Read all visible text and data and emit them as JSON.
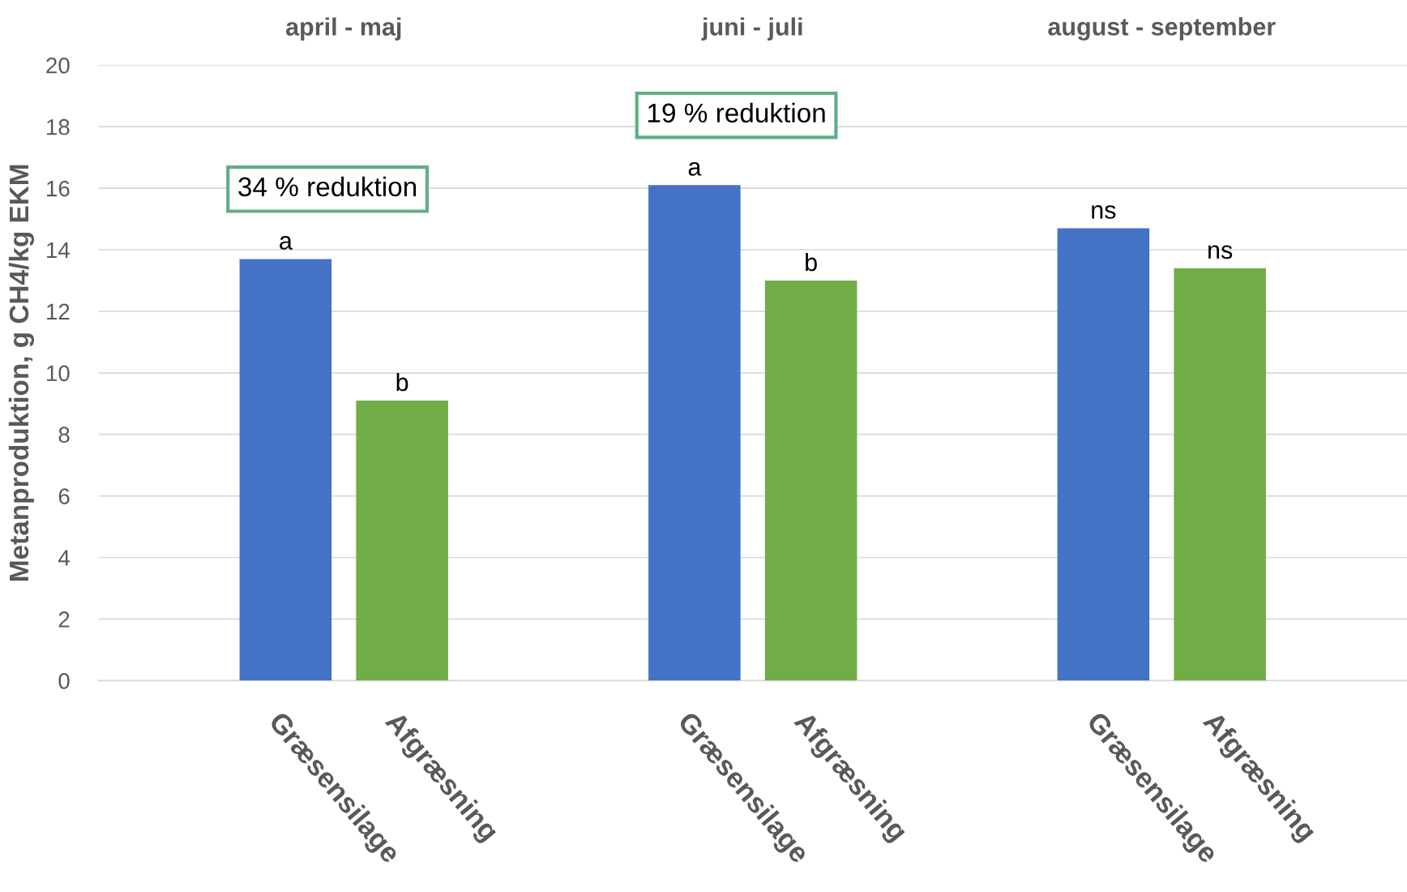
{
  "chart_data": {
    "type": "bar",
    "categories": [
      "april - maj",
      "juni - juli",
      "august - september"
    ],
    "series": [
      {
        "name": "Græsensilage",
        "color": "#4472c4",
        "values": [
          13.7,
          16.1,
          14.7
        ],
        "value_labels": [
          "a",
          "a",
          "ns"
        ]
      },
      {
        "name": "Afgræsning",
        "color": "#70ad47",
        "values": [
          9.1,
          13.0,
          13.4
        ],
        "value_labels": [
          "b",
          "b",
          "ns"
        ]
      }
    ],
    "ylabel": "Metanproduktion, g CH4/kg EKM",
    "ylim": [
      0,
      20
    ],
    "yticks": [
      0,
      2,
      4,
      6,
      8,
      10,
      12,
      14,
      16,
      18,
      20
    ],
    "grid": "y",
    "legend": false,
    "annotations": [
      "34 % reduktion",
      "19 % reduktion"
    ]
  }
}
